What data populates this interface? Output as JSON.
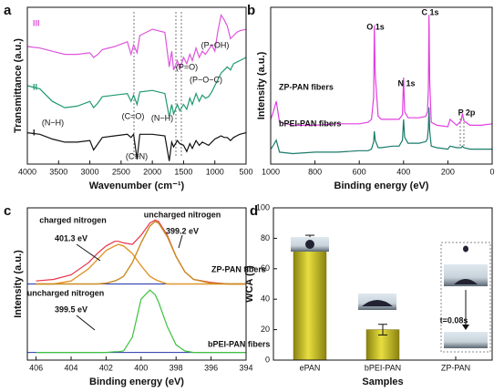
{
  "chart_data": [
    {
      "type": "line",
      "panel": "a",
      "x_label": "Wavenumber (cm⁻¹)",
      "y_label": "Transmittance (a.u.)",
      "xlim": [
        4000,
        500
      ],
      "xticks": [
        4000,
        3500,
        3000,
        2500,
        2000,
        1500,
        1000,
        500
      ],
      "ylim": [
        0,
        100
      ],
      "x": [
        4000,
        3800,
        3600,
        3400,
        3200,
        3000,
        2940,
        2870,
        2800,
        2600,
        2400,
        2340,
        2300,
        2244,
        2200,
        2000,
        1800,
        1730,
        1690,
        1660,
        1600,
        1560,
        1500,
        1450,
        1400,
        1360,
        1300,
        1250,
        1200,
        1150,
        1100,
        1050,
        1000,
        950,
        900,
        850,
        800,
        750,
        700,
        650,
        600,
        500
      ],
      "series": [
        {
          "name": "I",
          "color": "#111111",
          "values": [
            20,
            19,
            16,
            14,
            14,
            15,
            9,
            13,
            17,
            18,
            19,
            17,
            19,
            3,
            19,
            19,
            18,
            2,
            14,
            11,
            15,
            13,
            12,
            8,
            13,
            10,
            15,
            12,
            14,
            13,
            12,
            14,
            16,
            17,
            18,
            17,
            17,
            15,
            17,
            18,
            19,
            20
          ]
        },
        {
          "name": "II",
          "color": "#1f9a6e",
          "values": [
            50,
            48,
            40,
            36,
            37,
            40,
            36,
            39,
            43,
            44,
            45,
            40,
            44,
            38,
            46,
            47,
            45,
            30,
            38,
            32,
            38,
            34,
            38,
            35,
            42,
            38,
            45,
            40,
            44,
            42,
            43,
            46,
            50,
            54,
            58,
            60,
            62,
            60,
            64,
            65,
            66,
            68
          ]
        },
        {
          "name": "III",
          "color": "#dd55dd",
          "values": [
            75,
            74,
            72,
            70,
            70,
            71,
            68,
            70,
            73,
            75,
            78,
            70,
            76,
            71,
            82,
            86,
            84,
            62,
            72,
            60,
            66,
            61,
            68,
            64,
            70,
            66,
            74,
            68,
            72,
            70,
            73,
            76,
            72,
            85,
            95,
            92,
            88,
            80,
            82,
            84,
            85,
            86
          ]
        }
      ],
      "annotations": [
        "(N−H)",
        "(C≡N)",
        "(C=O)",
        "(N−H)",
        "(P=O)",
        "(P−O−C)",
        "(P−OH)"
      ]
    },
    {
      "type": "line",
      "panel": "b",
      "x_label": "Binding energy (eV)",
      "y_label": "Intensity (a.u.)",
      "xlim": [
        1000,
        0
      ],
      "xticks": [
        1000,
        800,
        600,
        400,
        200,
        0
      ],
      "ylim": [
        0,
        105
      ],
      "x": [
        1000,
        990,
        975,
        960,
        900,
        800,
        700,
        600,
        560,
        545,
        535,
        532,
        528,
        515,
        500,
        450,
        420,
        405,
        400,
        395,
        380,
        330,
        300,
        292,
        288,
        285,
        282,
        275,
        250,
        200,
        190,
        160,
        140,
        134,
        128,
        100,
        50,
        0
      ],
      "series": [
        {
          "name": "ZP-PAN fibers",
          "color": "#e040e0",
          "values": [
            30,
            34,
            42,
            28,
            26,
            26,
            27,
            27,
            28,
            30,
            45,
            93,
            60,
            32,
            30,
            30,
            30,
            33,
            58,
            35,
            31,
            31,
            32,
            35,
            50,
            100,
            55,
            28,
            26,
            25,
            30,
            26,
            29,
            34,
            29,
            26,
            26,
            27
          ]
        },
        {
          "name": "bPEI-PAN fibers",
          "color": "#1a7a6a",
          "values": [
            10,
            12,
            16,
            8,
            7,
            8,
            8,
            9,
            9,
            10,
            15,
            22,
            16,
            11,
            11,
            12,
            12,
            16,
            30,
            18,
            14,
            14,
            15,
            17,
            24,
            38,
            22,
            12,
            11,
            10,
            12,
            11,
            11,
            12,
            11,
            10,
            10,
            10
          ]
        }
      ],
      "annotations": [
        "O 1s",
        "N 1s",
        "C 1s",
        "P 2p"
      ]
    },
    {
      "type": "line",
      "panel": "c",
      "x_label": "Binding energy (eV)",
      "y_label": "Intensity (a.u.)",
      "xlim": [
        406.5,
        394
      ],
      "xticks": [
        406,
        404,
        402,
        400,
        398,
        396,
        394
      ],
      "ylim": [
        0,
        100
      ],
      "x": [
        406,
        405,
        404,
        403,
        402.5,
        402,
        401.5,
        401.3,
        401,
        400.5,
        400,
        399.5,
        399.2,
        399,
        398.5,
        398,
        397.5,
        397,
        396,
        395,
        394
      ],
      "series": [
        {
          "name": "ZP-PAN fibers",
          "color": "#e8334a",
          "values": [
            52,
            53,
            56,
            64,
            70,
            75,
            78,
            78,
            77,
            76,
            82,
            90,
            92,
            91,
            82,
            68,
            58,
            53,
            51,
            50,
            50
          ]
        },
        {
          "color": "#e0962a",
          "values": [
            50,
            50,
            52,
            60,
            66,
            72,
            75,
            76,
            75,
            70,
            62,
            55,
            53,
            52,
            50,
            50,
            50,
            50,
            50,
            50,
            50
          ]
        },
        {
          "color": "#c98a20",
          "values": [
            50,
            50,
            50,
            50,
            50,
            50.5,
            52,
            53,
            55,
            64,
            77,
            88,
            91,
            90,
            81,
            68,
            58,
            53,
            50.5,
            50,
            50
          ]
        },
        {
          "name": "bPEI-PAN fibers",
          "color": "#3cc23c",
          "values": [
            5,
            5,
            5,
            5,
            5,
            5,
            5.5,
            5.5,
            6,
            15,
            40,
            46,
            43,
            38,
            22,
            10,
            6,
            5,
            5,
            5,
            5
          ]
        }
      ],
      "annotations": [
        "charged nitrogen",
        "401.3 eV",
        "uncharged nitrogen",
        "399.2 eV",
        "uncharged nitrogen",
        "399.5 eV"
      ]
    },
    {
      "type": "bar",
      "panel": "d",
      "x_label": "Samples",
      "y_label": "WCA (°)",
      "categories": [
        "ePAN",
        "bPEI-PAN",
        "ZP-PAN"
      ],
      "values": [
        79,
        20,
        0
      ],
      "errors": [
        3,
        3.5,
        null
      ],
      "color": "#c7bd1e",
      "ylim": [
        0,
        100
      ],
      "yticks": [
        0,
        20,
        40,
        60,
        80,
        100
      ],
      "annotations": [
        "t=0.08s"
      ]
    }
  ]
}
